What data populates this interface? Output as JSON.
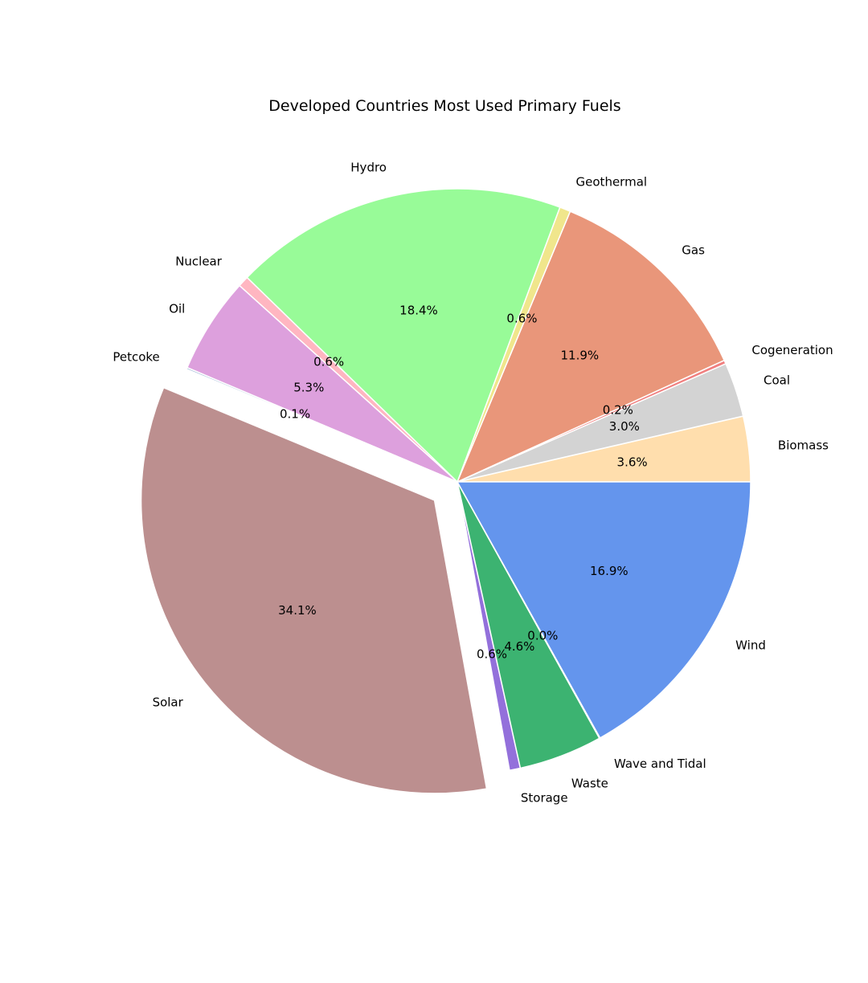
{
  "chart_data": {
    "type": "pie",
    "title": "Developed Countries Most Used Primary Fuels",
    "start_angle_deg": 0,
    "direction": "counterclockwise",
    "exploded": [
      "Solar"
    ],
    "slices": [
      {
        "label": "Biomass",
        "value": 3.6,
        "pct_label": "3.6%",
        "color": "#ffdead"
      },
      {
        "label": "Coal",
        "value": 3.0,
        "pct_label": "3.0%",
        "color": "#d3d3d3"
      },
      {
        "label": "Cogeneration",
        "value": 0.2,
        "pct_label": "0.2%",
        "color": "#f08080"
      },
      {
        "label": "Gas",
        "value": 11.9,
        "pct_label": "11.9%",
        "color": "#e9967a"
      },
      {
        "label": "Geothermal",
        "value": 0.6,
        "pct_label": "0.6%",
        "color": "#f0e68c"
      },
      {
        "label": "Hydro",
        "value": 18.4,
        "pct_label": "18.4%",
        "color": "#98fb98"
      },
      {
        "label": "Nuclear",
        "value": 0.6,
        "pct_label": "0.6%",
        "color": "#ffb6c1"
      },
      {
        "label": "Oil",
        "value": 5.3,
        "pct_label": "5.3%",
        "color": "#dda0dd"
      },
      {
        "label": "Petcoke",
        "value": 0.1,
        "pct_label": "0.1%",
        "color": "#b0c4de"
      },
      {
        "label": "Solar",
        "value": 34.1,
        "pct_label": "34.1%",
        "color": "#bc8f8f"
      },
      {
        "label": "Storage",
        "value": 0.6,
        "pct_label": "0.6%",
        "color": "#9370db"
      },
      {
        "label": "Waste",
        "value": 4.6,
        "pct_label": "4.6%",
        "color": "#3cb371"
      },
      {
        "label": "Wave and Tidal",
        "value": 0.04,
        "pct_label": "0.0%",
        "color": "#ffa500"
      },
      {
        "label": "Wind",
        "value": 16.9,
        "pct_label": "16.9%",
        "color": "#6495ed"
      }
    ]
  }
}
